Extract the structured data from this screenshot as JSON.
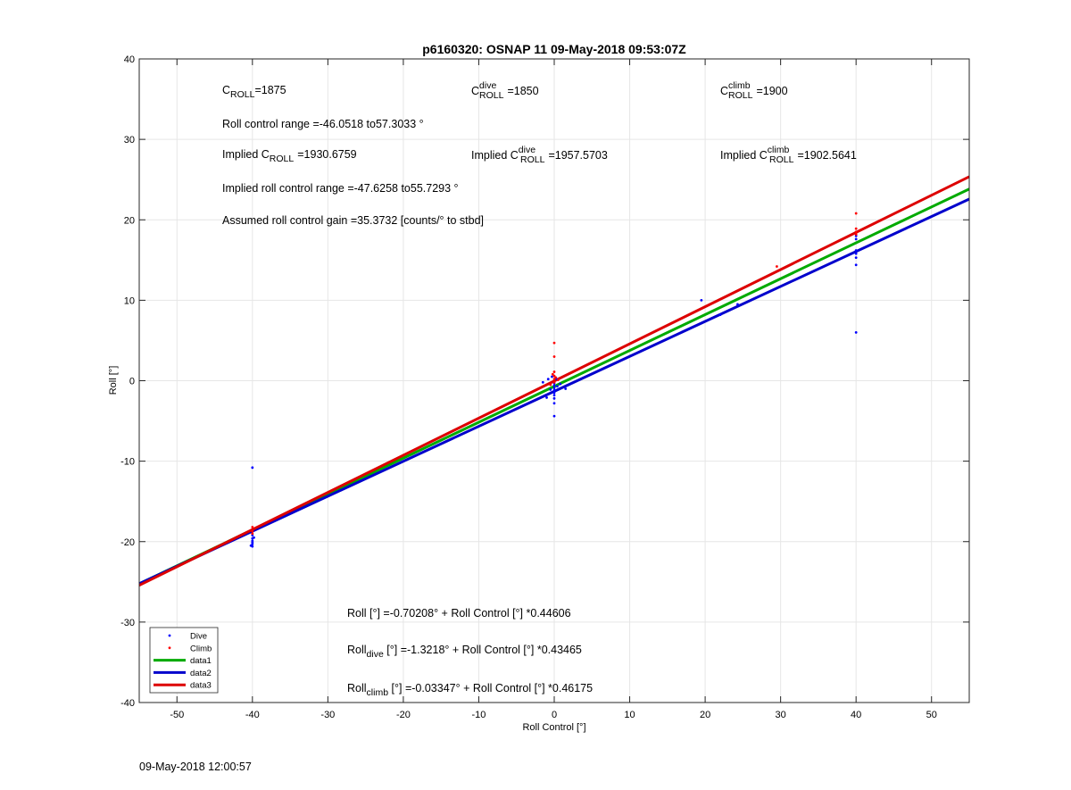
{
  "chart_data": {
    "type": "scatter",
    "title": "p6160320: OSNAP 11 09-May-2018 09:53:07Z",
    "xlabel": "Roll Control [°]",
    "ylabel": "Roll [°]",
    "xlim": [
      -55,
      55
    ],
    "ylim": [
      -40,
      40
    ],
    "xticks": [
      -50,
      -40,
      -30,
      -20,
      -10,
      0,
      10,
      20,
      30,
      40,
      50
    ],
    "yticks": [
      -40,
      -30,
      -20,
      -10,
      0,
      10,
      20,
      30,
      40
    ],
    "grid": true,
    "legend_position": "bottom-left",
    "legend": [
      {
        "label": "Dive",
        "kind": "marker",
        "color": "#0000ff"
      },
      {
        "label": "Climb",
        "kind": "marker",
        "color": "#ff0000"
      },
      {
        "label": "data1",
        "kind": "line",
        "color": "#00aa00"
      },
      {
        "label": "data2",
        "kind": "line",
        "color": "#0000cc"
      },
      {
        "label": "data3",
        "kind": "line",
        "color": "#dd0000"
      }
    ],
    "scatter": [
      {
        "name": "Dive",
        "color": "#0000ff",
        "points": [
          [
            -40,
            -10.8
          ],
          [
            -40,
            -19.2
          ],
          [
            -40,
            -19.6
          ],
          [
            -40,
            -19.9
          ],
          [
            -40,
            -20.1
          ],
          [
            -40,
            -20.3
          ],
          [
            -40.2,
            -20.5
          ],
          [
            -39.8,
            -19.5
          ],
          [
            -40,
            -20.6
          ],
          [
            0,
            -4.4
          ],
          [
            0,
            -2.8
          ],
          [
            0,
            -2.2
          ],
          [
            0,
            -1.8
          ],
          [
            0,
            -1.5
          ],
          [
            0,
            -1.2
          ],
          [
            0,
            -0.9
          ],
          [
            0,
            -0.6
          ],
          [
            0,
            -0.3
          ],
          [
            -0.5,
            -1.1
          ],
          [
            0.4,
            -0.7
          ],
          [
            -0.8,
            0.2
          ],
          [
            0.8,
            -0.4
          ],
          [
            -0.3,
            0.5
          ],
          [
            0.3,
            0.2
          ],
          [
            -1,
            -2.1
          ],
          [
            1.5,
            -1.0
          ],
          [
            -1.5,
            -0.2
          ],
          [
            19.5,
            10.0
          ],
          [
            22,
            8.2
          ],
          [
            24.3,
            9.5
          ],
          [
            40,
            6.0
          ],
          [
            40,
            14.4
          ],
          [
            40,
            15.3
          ],
          [
            40,
            15.8
          ],
          [
            40,
            16.2
          ],
          [
            40,
            17.6
          ],
          [
            40,
            18.0
          ]
        ]
      },
      {
        "name": "Climb",
        "color": "#ff0000",
        "points": [
          [
            -40,
            -18.2
          ],
          [
            -40,
            -18.7
          ],
          [
            -40,
            -19.0
          ],
          [
            0,
            4.7
          ],
          [
            0,
            3.0
          ],
          [
            0,
            1.1
          ],
          [
            0,
            0.6
          ],
          [
            0,
            0.2
          ],
          [
            0,
            -0.2
          ],
          [
            0.2,
            0.4
          ],
          [
            -0.2,
            0.8
          ],
          [
            0.5,
            0.1
          ],
          [
            -0.5,
            -0.5
          ],
          [
            29.5,
            14.2
          ],
          [
            40,
            20.8
          ],
          [
            40,
            18.9
          ],
          [
            40,
            18.5
          ],
          [
            40,
            18.2
          ]
        ]
      }
    ],
    "lines": [
      {
        "name": "data1",
        "color": "#00aa00",
        "intercept": -0.70208,
        "slope": 0.44606
      },
      {
        "name": "data2",
        "color": "#0000cc",
        "intercept": -1.3218,
        "slope": 0.43465
      },
      {
        "name": "data3",
        "color": "#dd0000",
        "intercept": -0.03347,
        "slope": 0.46175
      }
    ],
    "annotations": {
      "croll": {
        "main": "C",
        "sub": "ROLL",
        "value": "=1875"
      },
      "croll_dive": {
        "main": "C",
        "sup": "dive",
        "sub": "ROLL",
        "value": "=1850"
      },
      "croll_climb": {
        "main": "C",
        "sup": "climb",
        "sub": "ROLL",
        "value": "=1900"
      },
      "roll_range": "Roll control range =-46.0518 to57.3033 °",
      "implied_croll": {
        "prefix": "Implied C",
        "sub": "ROLL",
        "value": "=1930.6759"
      },
      "implied_croll_dive": {
        "prefix": "Implied C",
        "sup": "dive",
        "sub": "ROLL",
        "value": "=1957.5703"
      },
      "implied_croll_climb": {
        "prefix": "Implied C",
        "sup": "climb",
        "sub": "ROLL",
        "value": "=1902.5641"
      },
      "implied_range": "Implied roll control range =-47.6258 to55.7293 °",
      "gain": "Assumed roll control gain =35.3732 [counts/° to stbd]",
      "fit_all": "Roll [°] =-0.70208° + Roll Control [°] *0.44606",
      "fit_dive": {
        "main": "Roll",
        "sub": "dive",
        "rest": " [°] =-1.3218° + Roll Control [°] *0.43465"
      },
      "fit_climb": {
        "main": "Roll",
        "sub": "climb",
        "rest": " [°] =-0.03347° + Roll Control [°] *0.46175"
      }
    }
  },
  "footer_timestamp": "09-May-2018 12:00:57"
}
